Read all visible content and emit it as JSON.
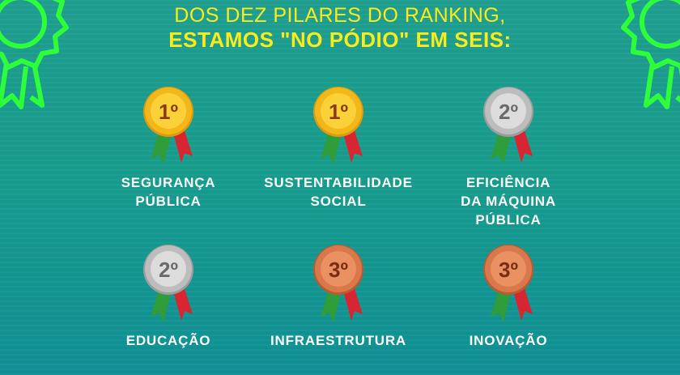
{
  "headline": {
    "line1": "DOS DEZ PILARES DO RANKING,",
    "line2": "ESTAMOS \"NO PÓDIO\" EM SEIS:"
  },
  "colors": {
    "background": "#179b8b",
    "headline": "#fbeb1a",
    "gold": "#f2b718",
    "silver": "#c9c9c9",
    "bronze": "#d9784a",
    "ribbon_green": "#2e9d3a",
    "ribbon_red": "#d72631",
    "badge_outline": "#2dff3a"
  },
  "pillars": [
    {
      "rank": "1º",
      "medal": "gold",
      "label_lines": [
        "SEGURANÇA",
        "PÚBLICA"
      ]
    },
    {
      "rank": "1º",
      "medal": "gold",
      "label_lines": [
        "SUSTENTABILIDADE",
        "SOCIAL"
      ]
    },
    {
      "rank": "2º",
      "medal": "silver",
      "label_lines": [
        "EFICIÊNCIA",
        "DA MÁQUINA",
        "PÚBLICA"
      ]
    },
    {
      "rank": "2º",
      "medal": "silver",
      "label_lines": [
        "EDUCAÇÃO"
      ]
    },
    {
      "rank": "3º",
      "medal": "bronze",
      "label_lines": [
        "INFRAESTRUTURA"
      ]
    },
    {
      "rank": "3º",
      "medal": "bronze",
      "label_lines": [
        "INOVAÇÃO"
      ]
    }
  ],
  "icons": {
    "left_corner": "award-badge-icon",
    "right_corner": "award-badge-icon"
  }
}
